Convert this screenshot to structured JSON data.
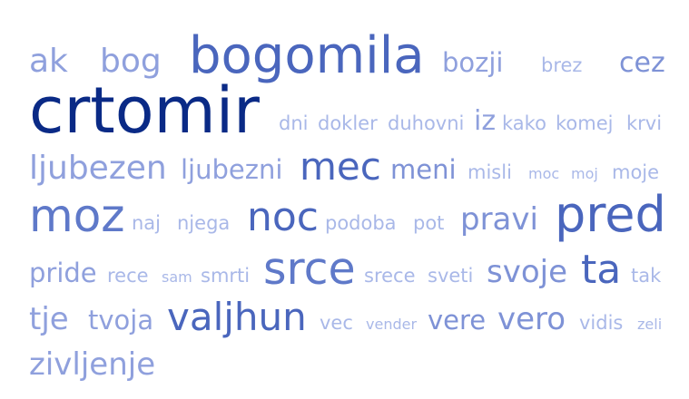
{
  "word_cloud": {
    "words": [
      {
        "text": "ak",
        "color": "#8fa0dd"
      },
      {
        "text": "bog",
        "color": "#8fa0dd"
      },
      {
        "text": "bogomila",
        "color": "#4a66bd"
      },
      {
        "text": "bozji",
        "color": "#8fa0dd"
      },
      {
        "text": "brez",
        "color": "#a9b8e8"
      },
      {
        "text": "cez",
        "color": "#7e92d6"
      },
      {
        "text": "crtomir",
        "color": "#0a2a86"
      },
      {
        "text": "dni",
        "color": "#a9b8e8"
      },
      {
        "text": "dokler",
        "color": "#a9b8e8"
      },
      {
        "text": "duhovni",
        "color": "#a9b8e8"
      },
      {
        "text": "iz",
        "color": "#8fa0dd"
      },
      {
        "text": "kako",
        "color": "#a9b8e8"
      },
      {
        "text": "komej",
        "color": "#a9b8e8"
      },
      {
        "text": "krvi",
        "color": "#a9b8e8"
      },
      {
        "text": "ljubezen",
        "color": "#8fa0dd"
      },
      {
        "text": "ljubezni",
        "color": "#8fa0dd"
      },
      {
        "text": "mec",
        "color": "#4a66bd"
      },
      {
        "text": "meni",
        "color": "#7e92d6"
      },
      {
        "text": "misli",
        "color": "#a9b8e8"
      },
      {
        "text": "moc",
        "color": "#a9b8e8"
      },
      {
        "text": "moj",
        "color": "#a9b8e8"
      },
      {
        "text": "moje",
        "color": "#a9b8e8"
      },
      {
        "text": "moz",
        "color": "#5f79c9"
      },
      {
        "text": "naj",
        "color": "#a9b8e8"
      },
      {
        "text": "njega",
        "color": "#a9b8e8"
      },
      {
        "text": "noc",
        "color": "#4a66bd"
      },
      {
        "text": "podoba",
        "color": "#a9b8e8"
      },
      {
        "text": "pot",
        "color": "#a9b8e8"
      },
      {
        "text": "pravi",
        "color": "#7e92d6"
      },
      {
        "text": "pred",
        "color": "#4a66bd"
      },
      {
        "text": "pride",
        "color": "#8fa0dd"
      },
      {
        "text": "rece",
        "color": "#a9b8e8"
      },
      {
        "text": "sam",
        "color": "#a9b8e8"
      },
      {
        "text": "smrti",
        "color": "#a9b8e8"
      },
      {
        "text": "srce",
        "color": "#5f79c9"
      },
      {
        "text": "srece",
        "color": "#a9b8e8"
      },
      {
        "text": "sveti",
        "color": "#a9b8e8"
      },
      {
        "text": "svoje",
        "color": "#7e92d6"
      },
      {
        "text": "ta",
        "color": "#4a66bd"
      },
      {
        "text": "tak",
        "color": "#a9b8e8"
      },
      {
        "text": "tje",
        "color": "#8fa0dd"
      },
      {
        "text": "tvoja",
        "color": "#8fa0dd"
      },
      {
        "text": "valjhun",
        "color": "#4a66bd"
      },
      {
        "text": "vec",
        "color": "#a9b8e8"
      },
      {
        "text": "vender",
        "color": "#a9b8e8"
      },
      {
        "text": "vere",
        "color": "#7e92d6"
      },
      {
        "text": "vero",
        "color": "#7e92d6"
      },
      {
        "text": "vidis",
        "color": "#a9b8e8"
      },
      {
        "text": "zeli",
        "color": "#a9b8e8"
      },
      {
        "text": "zivljenje",
        "color": "#8fa0dd"
      }
    ]
  }
}
